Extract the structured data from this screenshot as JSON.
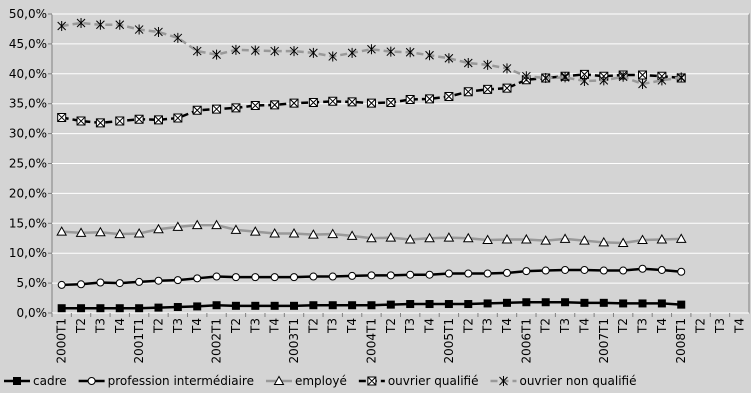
{
  "chart_data": {
    "type": "line",
    "categories": [
      "2000T1",
      "T2",
      "T3",
      "T4",
      "2001T1",
      "T2",
      "T3",
      "T4",
      "2002T1",
      "T2",
      "T3",
      "T4",
      "2003T1",
      "T2",
      "T3",
      "T4",
      "2004T1",
      "T2",
      "T3",
      "T4",
      "2005T1",
      "T2",
      "T3",
      "T4",
      "2006T1",
      "T2",
      "T3",
      "T4",
      "2007T1",
      "T2",
      "T3",
      "T4",
      "2008T1",
      "T2",
      "T3",
      "T4"
    ],
    "series": [
      {
        "name": "cadre",
        "color": "#000000",
        "marker": "square",
        "dashed": false,
        "values": [
          0.8,
          0.8,
          0.8,
          0.8,
          0.8,
          0.9,
          1.0,
          1.1,
          1.3,
          1.2,
          1.2,
          1.2,
          1.2,
          1.3,
          1.3,
          1.3,
          1.3,
          1.4,
          1.5,
          1.5,
          1.5,
          1.5,
          1.6,
          1.7,
          1.8,
          1.8,
          1.8,
          1.7,
          1.7,
          1.6,
          1.6,
          1.6,
          1.4,
          null,
          null,
          null
        ]
      },
      {
        "name": "profession intermédiaire",
        "color": "#000000",
        "marker": "circle",
        "dashed": false,
        "values": [
          4.7,
          4.8,
          5.1,
          5.0,
          5.2,
          5.4,
          5.5,
          5.8,
          6.1,
          6.0,
          6.0,
          6.0,
          6.0,
          6.1,
          6.1,
          6.2,
          6.3,
          6.3,
          6.4,
          6.4,
          6.6,
          6.6,
          6.6,
          6.7,
          7.0,
          7.1,
          7.2,
          7.2,
          7.1,
          7.1,
          7.4,
          7.2,
          6.9,
          null,
          null,
          null
        ]
      },
      {
        "name": "employé",
        "color": "#999999",
        "marker": "triangle",
        "dashed": false,
        "values": [
          13.6,
          13.4,
          13.5,
          13.2,
          13.3,
          14.0,
          14.4,
          14.7,
          14.7,
          13.9,
          13.6,
          13.3,
          13.3,
          13.1,
          13.2,
          12.9,
          12.5,
          12.6,
          12.3,
          12.5,
          12.6,
          12.5,
          12.2,
          12.3,
          12.3,
          12.1,
          12.4,
          12.1,
          11.8,
          11.7,
          12.2,
          12.3,
          12.4,
          null,
          null,
          null
        ]
      },
      {
        "name": "ouvrier qualifié",
        "color": "#000000",
        "marker": "boxx",
        "dashed": true,
        "values": [
          32.7,
          32.1,
          31.8,
          32.1,
          32.4,
          32.3,
          32.6,
          33.9,
          34.1,
          34.3,
          34.7,
          34.8,
          35.1,
          35.2,
          35.4,
          35.3,
          35.1,
          35.2,
          35.7,
          35.8,
          36.2,
          37.0,
          37.4,
          37.6,
          39.0,
          39.3,
          39.6,
          39.9,
          39.6,
          39.8,
          39.8,
          39.6,
          39.3,
          null,
          null,
          null
        ]
      },
      {
        "name": "ouvrier non qualifié",
        "color": "#999999",
        "marker": "star",
        "dashed": true,
        "values": [
          48.0,
          48.5,
          48.2,
          48.2,
          47.4,
          47.0,
          46.0,
          43.8,
          43.2,
          44.0,
          43.9,
          43.8,
          43.8,
          43.5,
          42.9,
          43.5,
          44.1,
          43.7,
          43.6,
          43.1,
          42.6,
          41.8,
          41.5,
          40.9,
          39.6,
          39.3,
          39.4,
          38.8,
          38.9,
          39.5,
          38.3,
          38.9,
          39.4,
          null,
          null,
          null
        ]
      }
    ],
    "ylim": [
      0,
      50
    ],
    "yticks": [
      {
        "value": 0,
        "label": "0,0%"
      },
      {
        "value": 5,
        "label": "5,0%"
      },
      {
        "value": 10,
        "label": "10,0%"
      },
      {
        "value": 15,
        "label": "15,0%"
      },
      {
        "value": 20,
        "label": "20,0%"
      },
      {
        "value": 25,
        "label": "25,0%"
      },
      {
        "value": 30,
        "label": "30,0%"
      },
      {
        "value": 35,
        "label": "35,0%"
      },
      {
        "value": 40,
        "label": "40,0%"
      },
      {
        "value": 45,
        "label": "45,0%"
      },
      {
        "value": 50,
        "label": "50,0%"
      }
    ],
    "grid": true,
    "legend": "bottom"
  }
}
